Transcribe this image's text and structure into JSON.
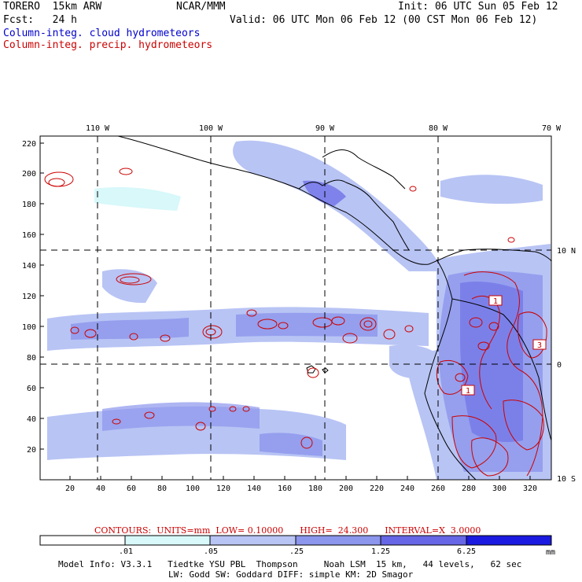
{
  "header": {
    "model": "TORERO  15km ARW",
    "org": "NCAR/MMM",
    "init": "Init: 06 UTC Sun 05 Feb 12",
    "fcst": "Fcst:   24 h",
    "valid": "Valid: 06 UTC Mon 06 Feb 12 (00 CST Mon 06 Feb 12)",
    "field1": "Column-integ. cloud hydrometeors",
    "field2": "Column-integ. precip. hydrometeors"
  },
  "colors": {
    "cloud_field": "#0000cc",
    "precip_field": "#cc0000",
    "shade1": "#d8f8fa",
    "shade2": "#b8c4f4",
    "shade3": "#8c96ec",
    "shade4": "#6666e6",
    "shade5": "#4040e0",
    "shade6": "#1a1ae0"
  },
  "map": {
    "top_lon_labels": [
      "110 W",
      "100 W",
      "90 W",
      "80 W",
      "70 W"
    ],
    "left_y_labels": [
      "220",
      "200",
      "180",
      "160",
      "140",
      "120",
      "100",
      "80",
      "60",
      "40",
      "20"
    ],
    "bottom_x_labels": [
      "20",
      "40",
      "60",
      "80",
      "100",
      "120",
      "140",
      "160",
      "180",
      "200",
      "220",
      "240",
      "260",
      "280",
      "300",
      "320"
    ],
    "right_lat_labels": [
      "10 N",
      "0",
      "10 S"
    ],
    "contour_labels": [
      "1",
      "3",
      "1"
    ]
  },
  "contours_line": "CONTOURS:  UNITS=mm  LOW= 0.10000      HIGH=  24.300      INTERVAL=X  3.0000",
  "colorbar": {
    "labels": [
      ".01",
      ".05",
      ".25",
      "1.25",
      "6.25"
    ],
    "units": "mm"
  },
  "footer": {
    "line1": "Model Info: V3.3.1   Tiedtke YSU PBL  Thompson     Noah LSM  15 km,   44 levels,   62 sec",
    "line2": "LW: Godd SW: Goddard DIFF: simple KM: 2D Smagor"
  }
}
